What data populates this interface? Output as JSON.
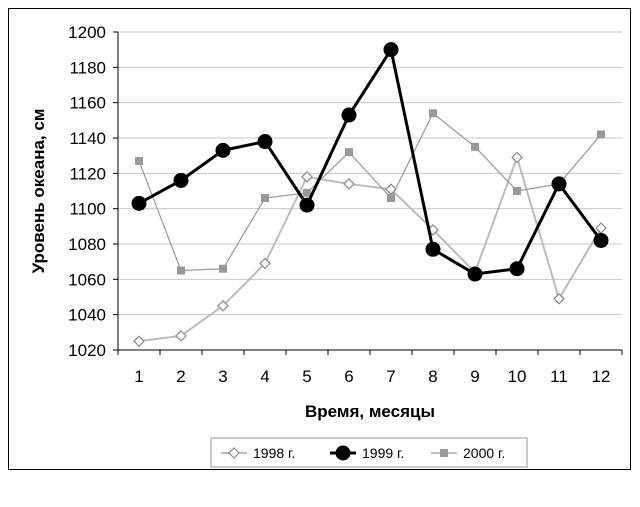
{
  "chart_data": {
    "type": "line",
    "xlabel": "Время, месяцы",
    "ylabel": "Уровень океана, см",
    "categories": [
      "1",
      "2",
      "3",
      "4",
      "5",
      "6",
      "7",
      "8",
      "9",
      "10",
      "11",
      "12"
    ],
    "ylim": [
      1020,
      1200
    ],
    "yticks": [
      1020,
      1040,
      1060,
      1080,
      1100,
      1120,
      1140,
      1160,
      1180,
      1200
    ],
    "grid": "horizontal",
    "legend_position": "bottom",
    "series": [
      {
        "name": "1998 г.",
        "color": "#bbbbbb",
        "marker": "diamond-open",
        "values": [
          1025,
          1028,
          1045,
          1069,
          1118,
          1114,
          1111,
          1088,
          1064,
          1129,
          1049,
          1089
        ]
      },
      {
        "name": "1999 г.",
        "color": "#000000",
        "marker": "circle-filled",
        "values": [
          1103,
          1116,
          1133,
          1138,
          1102,
          1153,
          1190,
          1077,
          1063,
          1066,
          1114,
          1082
        ]
      },
      {
        "name": "2000 г.",
        "color": "#999999",
        "marker": "square-filled",
        "values": [
          1127,
          1065,
          1066,
          1106,
          1109,
          1132,
          1106,
          1154,
          1135,
          1110,
          1114,
          1142
        ]
      }
    ]
  }
}
